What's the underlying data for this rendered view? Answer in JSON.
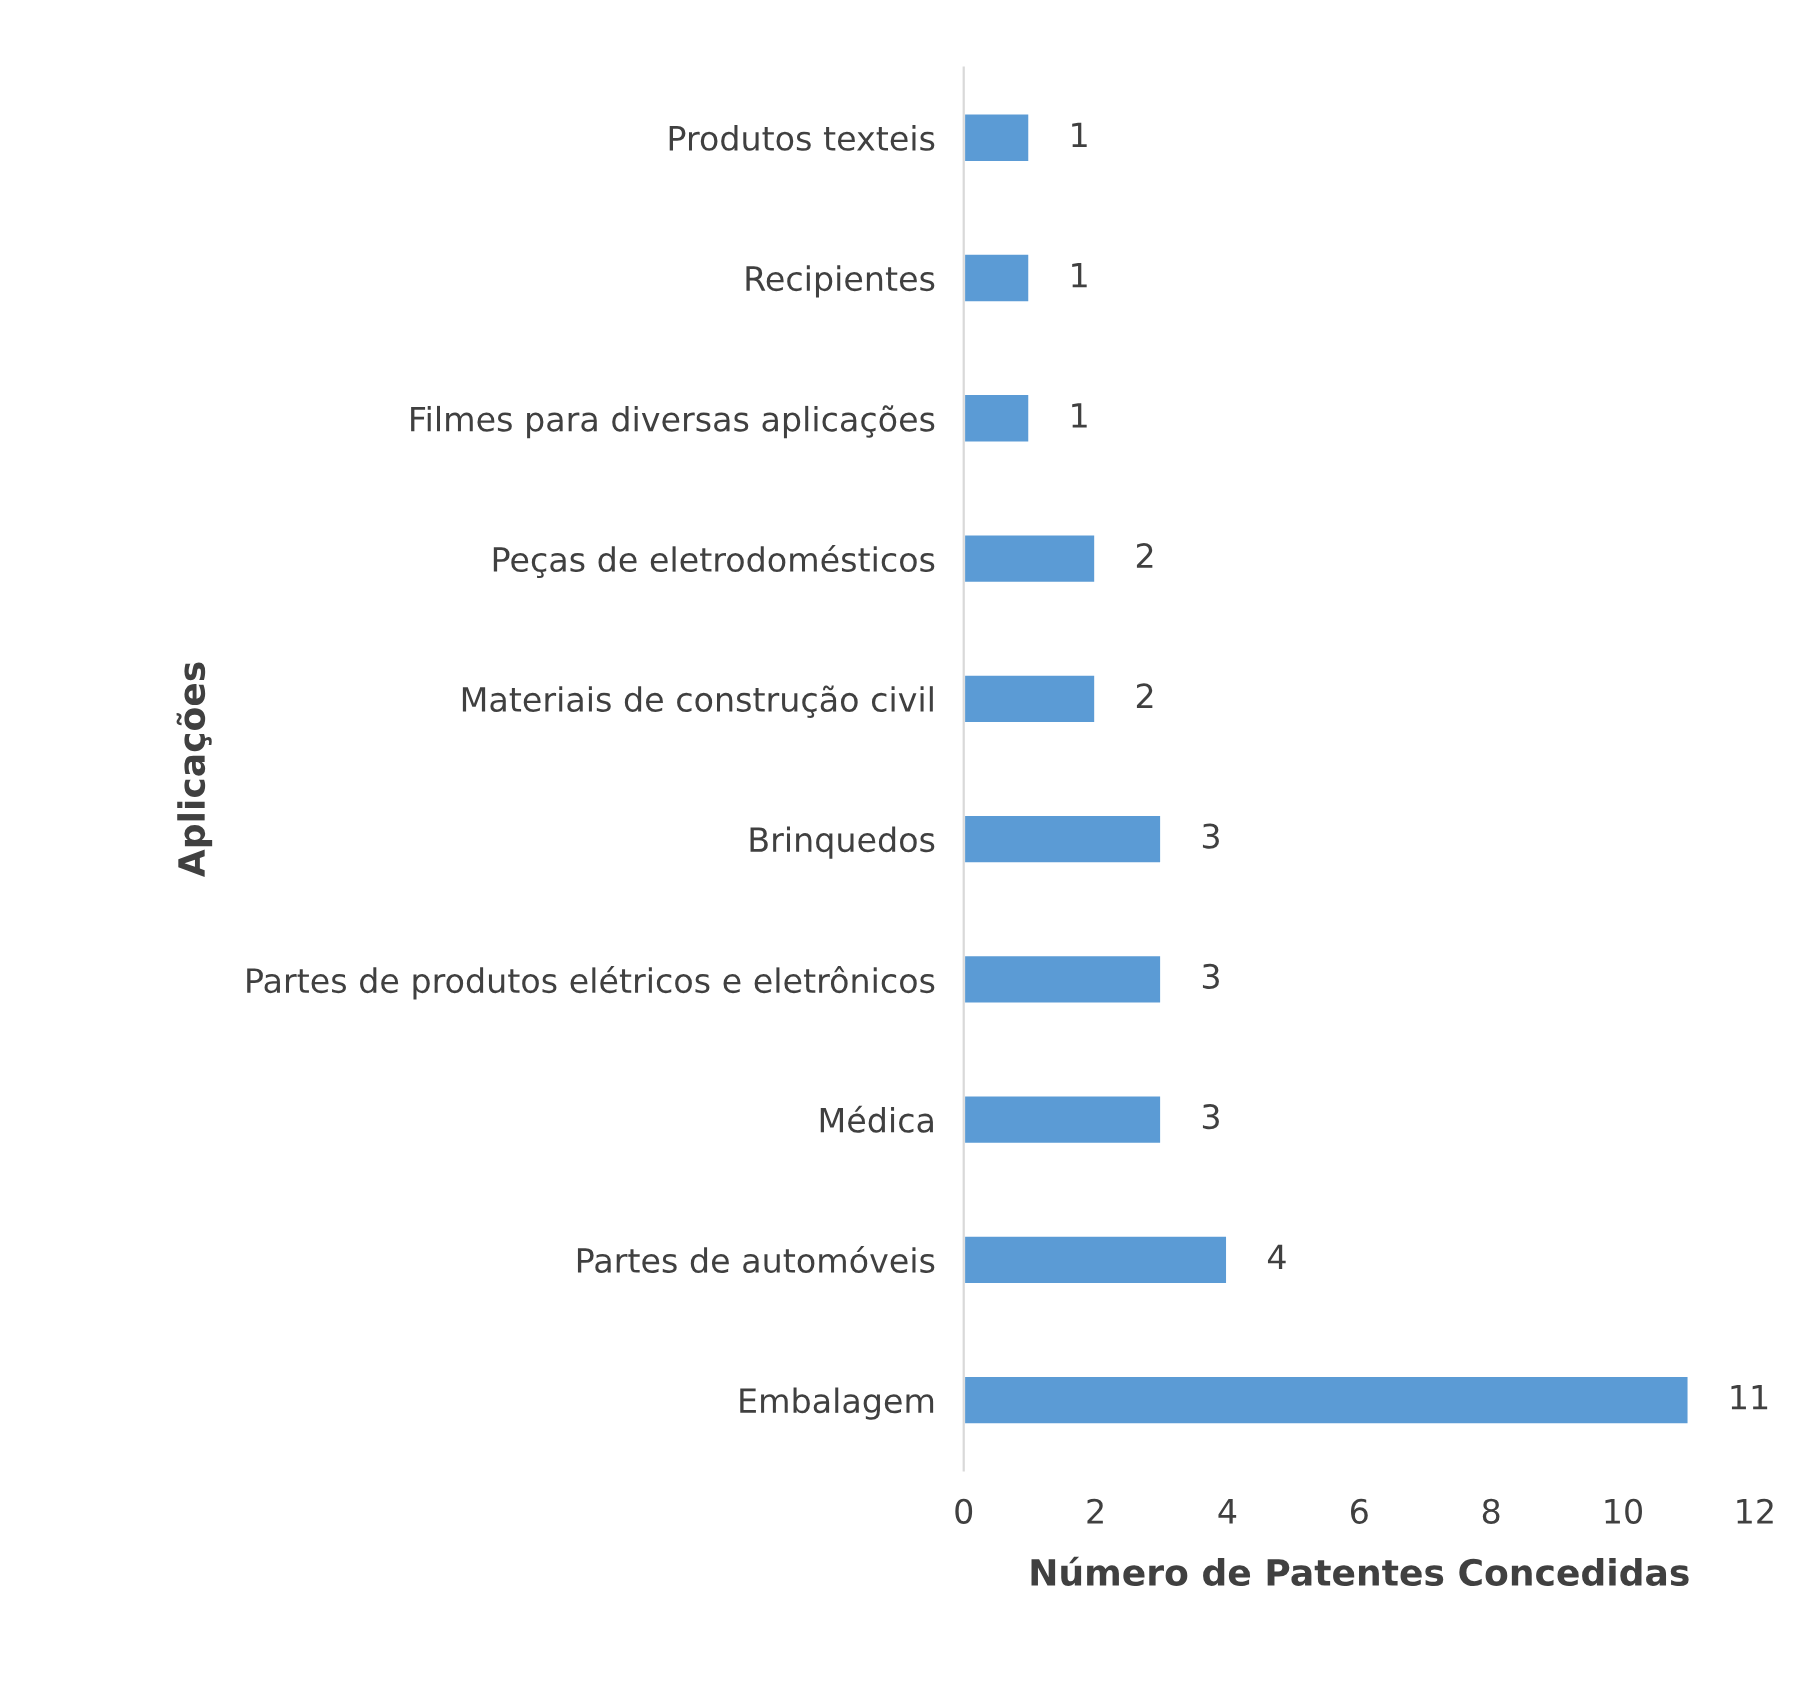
{
  "chart_data": {
    "type": "bar",
    "orientation": "horizontal",
    "xlabel": "Número de Patentes Concedidas",
    "ylabel": "Aplicações",
    "categories": [
      "Produtos texteis",
      "Recipientes",
      "Filmes para diversas aplicações",
      "Peças de eletrodomésticos",
      "Materiais de construção civil",
      "Brinquedos",
      "Partes de produtos elétricos e eletrônicos",
      "Médica",
      "Partes de automóveis",
      "Embalagem"
    ],
    "values": [
      1,
      1,
      1,
      2,
      2,
      3,
      3,
      3,
      4,
      11
    ],
    "color": "#5b9bd5",
    "xlim": [
      0,
      12
    ],
    "xticks": [
      0,
      2,
      4,
      6,
      8,
      10,
      12
    ],
    "grid": false,
    "data_labels": true
  }
}
